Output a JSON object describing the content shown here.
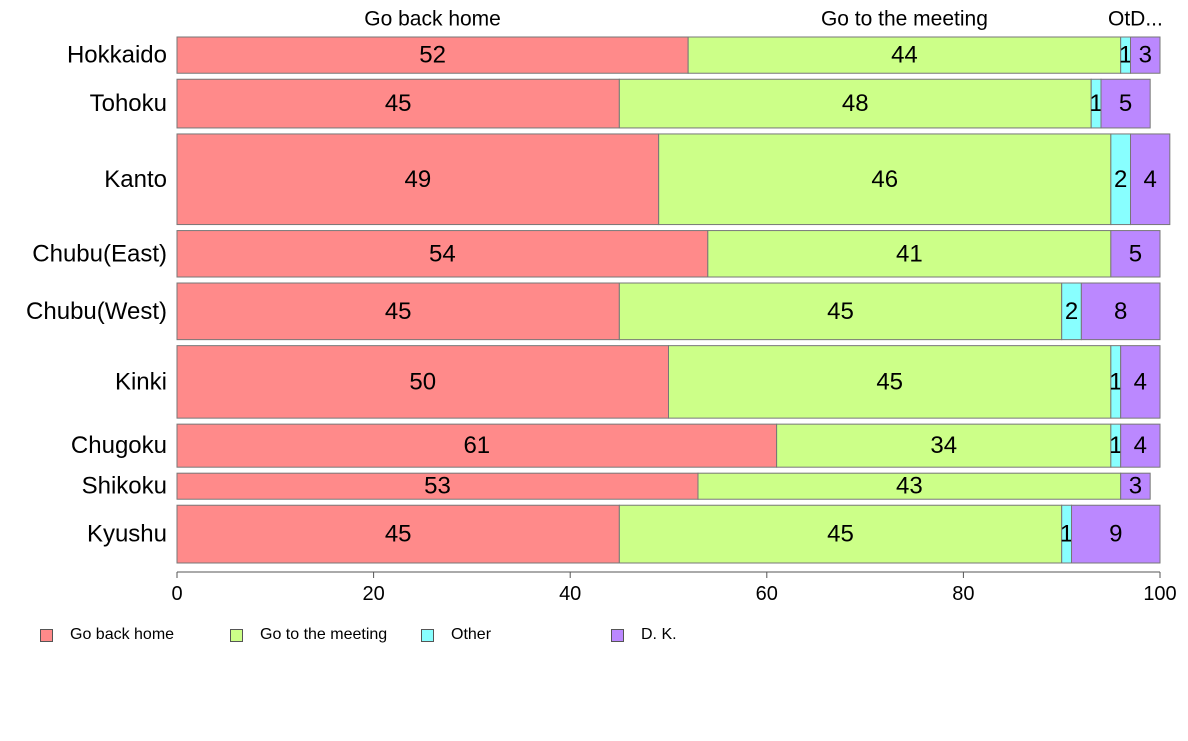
{
  "colors": {
    "go_back_home": "#ff8a8a",
    "go_to_meeting": "#ccff88",
    "other": "#88ffff",
    "dk": "#bb88ff",
    "bar_border": "#777777",
    "axis": "#555555"
  },
  "top_labels": [
    "Go back home",
    "Go to the meeting",
    "OtD..."
  ],
  "chart_data": {
    "type": "bar",
    "orientation": "horizontal",
    "stacked": true,
    "categories": [
      "Hokkaido",
      "Tohoku",
      "Kanto",
      "Chubu(East)",
      "Chubu(West)",
      "Kinki",
      "Chugoku",
      "Shikoku",
      "Kyushu"
    ],
    "bar_weights": [
      32,
      43,
      80,
      41,
      50,
      64,
      38,
      23,
      51
    ],
    "series": [
      {
        "name": "Go back home",
        "values": [
          52,
          45,
          49,
          54,
          45,
          50,
          61,
          53,
          45
        ],
        "color_key": "go_back_home"
      },
      {
        "name": "Go to the meeting",
        "values": [
          44,
          48,
          46,
          41,
          45,
          45,
          34,
          43,
          45
        ],
        "color_key": "go_to_meeting"
      },
      {
        "name": "Other",
        "values": [
          1,
          1,
          2,
          0,
          2,
          1,
          1,
          0,
          1
        ],
        "color_key": "other"
      },
      {
        "name": "D. K.",
        "values": [
          3,
          5,
          4,
          5,
          8,
          4,
          4,
          3,
          9
        ],
        "color_key": "dk"
      }
    ],
    "xlim": [
      0,
      100
    ],
    "xticks": [
      0,
      20,
      40,
      60,
      80,
      100
    ],
    "grid": false,
    "legend_position": "bottom-left"
  },
  "legend": {
    "items": [
      {
        "label": "Go back home",
        "color_key": "go_back_home"
      },
      {
        "label": "Go to the meeting",
        "color_key": "go_to_meeting"
      },
      {
        "label": "Other",
        "color_key": "other"
      },
      {
        "label": "D. K.",
        "color_key": "dk"
      }
    ]
  }
}
